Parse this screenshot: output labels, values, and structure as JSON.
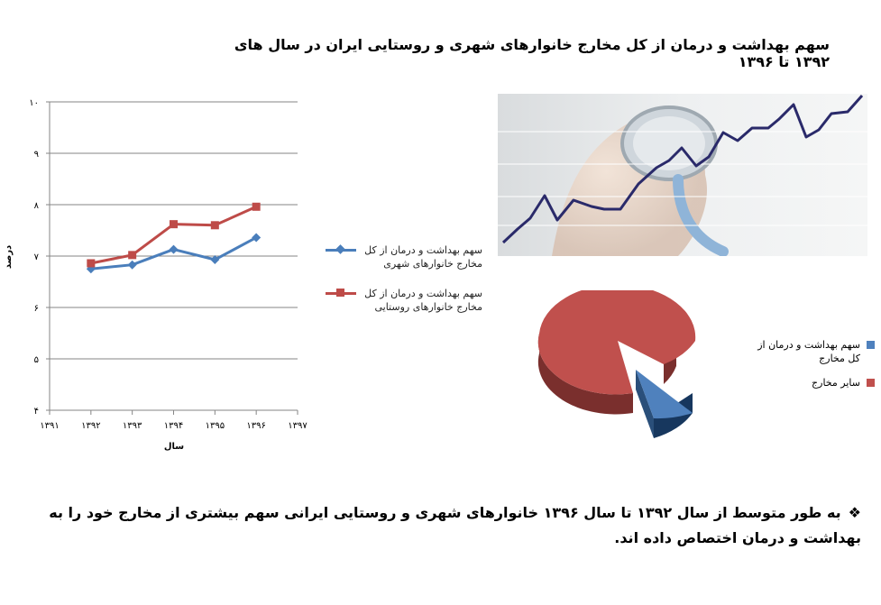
{
  "slide": {
    "title": "سهم بهداشت و درمان از کل مخارج خانوارهای شهری و روستایی ایران در سال های ۱۳۹۲ تا ۱۳۹۶",
    "bullet_text": "به طور متوسط از سال ۱۳۹۲ تا سال ۱۳۹۶ خانوارهای شهری و روستایی ایرانی سهم بیشتری از مخارج خود را به بهداشت و درمان اختصاص داده اند.",
    "bullet_icon": "diamond-bullet-icon",
    "photo_icon": "stethoscope-trend-photo"
  },
  "chart_data": [
    {
      "type": "line",
      "xlabel": "سال",
      "ylabel": "درصد",
      "ylim": [
        4,
        10
      ],
      "yticks": [
        "۴",
        "۵",
        "۶",
        "۷",
        "۸",
        "۹",
        "۱۰"
      ],
      "xticks": [
        "۱۳۹۱",
        "۱۳۹۲",
        "۱۳۹۳",
        "۱۳۹۴",
        "۱۳۹۵",
        "۱۳۹۶",
        "۱۳۹۷"
      ],
      "x": [
        1392,
        1393,
        1394,
        1395,
        1396
      ],
      "xlim": [
        1391,
        1397
      ],
      "grid": "horizontal",
      "legend": "right",
      "series": [
        {
          "name": "سهم بهداشت و درمان از کل مخارج خانوارهای شهری",
          "color": "#4a7ebb",
          "marker": "diamond",
          "values": [
            6.75,
            6.83,
            7.13,
            6.93,
            7.36
          ]
        },
        {
          "name": "سهم بهداشت و درمان از کل مخارج خانوارهای روستایی",
          "color": "#be4b48",
          "marker": "square",
          "values": [
            6.86,
            7.02,
            7.62,
            7.6,
            7.96
          ]
        }
      ]
    },
    {
      "type": "pie",
      "style": "3d-exploded",
      "legend": "right",
      "slices": [
        {
          "name": "سهم بهداشت و درمان از کل مخارج",
          "color": "#4f81bd",
          "value": 7
        },
        {
          "name": "سایر مخارج",
          "color": "#c0504d",
          "value": 93
        }
      ]
    }
  ]
}
